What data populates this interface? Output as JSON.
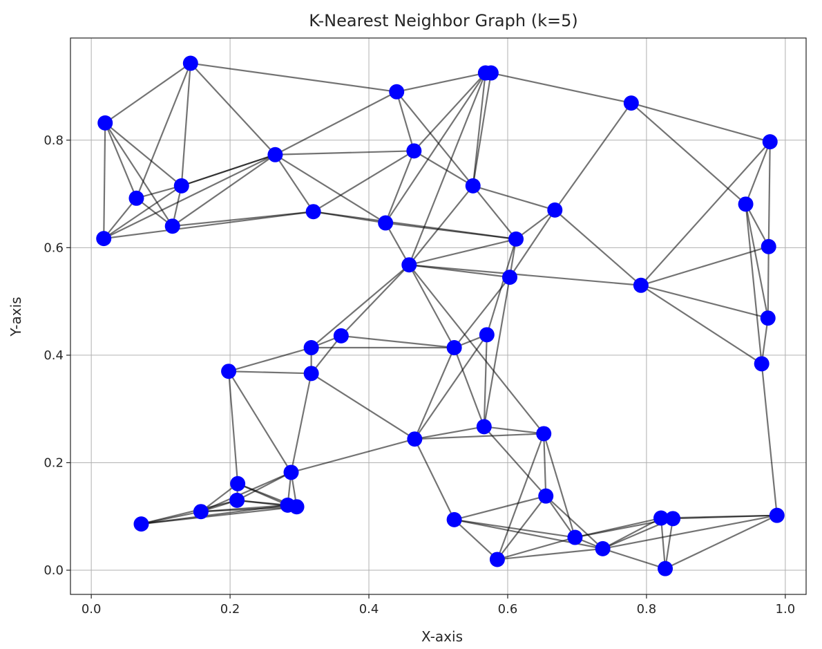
{
  "chart_data": {
    "type": "scatter",
    "title": "K-Nearest Neighbor Graph (k=5)",
    "xlabel": "X-axis",
    "ylabel": "Y-axis",
    "xlim": [
      -0.03,
      1.03
    ],
    "ylim": [
      -0.045,
      0.99
    ],
    "xticks": [
      0.0,
      0.2,
      0.4,
      0.6,
      0.8,
      1.0
    ],
    "yticks": [
      0.0,
      0.2,
      0.4,
      0.6,
      0.8
    ],
    "xtick_labels": [
      "0.0",
      "0.2",
      "0.4",
      "0.6",
      "0.8",
      "1.0"
    ],
    "ytick_labels": [
      "0.0",
      "0.2",
      "0.4",
      "0.6",
      "0.8"
    ],
    "grid": true,
    "point_color": "#0000ff",
    "edge_color": "#000000",
    "points": [
      [
        0.02,
        0.832
      ],
      [
        0.143,
        0.943
      ],
      [
        0.065,
        0.692
      ],
      [
        0.13,
        0.715
      ],
      [
        0.117,
        0.64
      ],
      [
        0.018,
        0.617
      ],
      [
        0.265,
        0.773
      ],
      [
        0.32,
        0.667
      ],
      [
        0.44,
        0.89
      ],
      [
        0.465,
        0.78
      ],
      [
        0.568,
        0.925
      ],
      [
        0.576,
        0.925
      ],
      [
        0.55,
        0.715
      ],
      [
        0.424,
        0.646
      ],
      [
        0.668,
        0.67
      ],
      [
        0.778,
        0.869
      ],
      [
        0.978,
        0.797
      ],
      [
        0.612,
        0.616
      ],
      [
        0.458,
        0.568
      ],
      [
        0.603,
        0.545
      ],
      [
        0.792,
        0.53
      ],
      [
        0.943,
        0.681
      ],
      [
        0.976,
        0.602
      ],
      [
        0.975,
        0.469
      ],
      [
        0.966,
        0.384
      ],
      [
        0.36,
        0.436
      ],
      [
        0.317,
        0.414
      ],
      [
        0.198,
        0.37
      ],
      [
        0.317,
        0.366
      ],
      [
        0.523,
        0.414
      ],
      [
        0.57,
        0.438
      ],
      [
        0.566,
        0.267
      ],
      [
        0.466,
        0.244
      ],
      [
        0.652,
        0.254
      ],
      [
        0.655,
        0.138
      ],
      [
        0.211,
        0.161
      ],
      [
        0.288,
        0.182
      ],
      [
        0.21,
        0.13
      ],
      [
        0.158,
        0.109
      ],
      [
        0.283,
        0.121
      ],
      [
        0.296,
        0.118
      ],
      [
        0.072,
        0.086
      ],
      [
        0.523,
        0.094
      ],
      [
        0.585,
        0.02
      ],
      [
        0.697,
        0.061
      ],
      [
        0.737,
        0.04
      ],
      [
        0.821,
        0.097
      ],
      [
        0.838,
        0.096
      ],
      [
        0.827,
        0.003
      ],
      [
        0.988,
        0.102
      ]
    ],
    "edges": [
      [
        0,
        2
      ],
      [
        0,
        3
      ],
      [
        0,
        4
      ],
      [
        0,
        5
      ],
      [
        1,
        0
      ],
      [
        1,
        3
      ],
      [
        1,
        6
      ],
      [
        1,
        2
      ],
      [
        1,
        8
      ],
      [
        2,
        3
      ],
      [
        2,
        4
      ],
      [
        2,
        5
      ],
      [
        3,
        4
      ],
      [
        3,
        5
      ],
      [
        3,
        6
      ],
      [
        4,
        6
      ],
      [
        4,
        7
      ],
      [
        5,
        6
      ],
      [
        5,
        7
      ],
      [
        6,
        7
      ],
      [
        6,
        8
      ],
      [
        6,
        9
      ],
      [
        6,
        3
      ],
      [
        7,
        9
      ],
      [
        7,
        13
      ],
      [
        6,
        13
      ],
      [
        7,
        17
      ],
      [
        8,
        9
      ],
      [
        8,
        12
      ],
      [
        8,
        10
      ],
      [
        9,
        12
      ],
      [
        9,
        13
      ],
      [
        9,
        10
      ],
      [
        10,
        11
      ],
      [
        10,
        12
      ],
      [
        10,
        13
      ],
      [
        10,
        18
      ],
      [
        11,
        12
      ],
      [
        11,
        15
      ],
      [
        12,
        14
      ],
      [
        12,
        17
      ],
      [
        13,
        18
      ],
      [
        13,
        17
      ],
      [
        12,
        18
      ],
      [
        14,
        17
      ],
      [
        14,
        20
      ],
      [
        14,
        19
      ],
      [
        15,
        16
      ],
      [
        15,
        21
      ],
      [
        15,
        14
      ],
      [
        16,
        21
      ],
      [
        16,
        22
      ],
      [
        16,
        20
      ],
      [
        21,
        22
      ],
      [
        21,
        23
      ],
      [
        21,
        24
      ],
      [
        22,
        23
      ],
      [
        22,
        20
      ],
      [
        23,
        20
      ],
      [
        24,
        20
      ],
      [
        24,
        23
      ],
      [
        17,
        18
      ],
      [
        17,
        19
      ],
      [
        18,
        19
      ],
      [
        18,
        20
      ],
      [
        18,
        29
      ],
      [
        17,
        30
      ],
      [
        18,
        25
      ],
      [
        18,
        26
      ],
      [
        19,
        31
      ],
      [
        19,
        29
      ],
      [
        18,
        33
      ],
      [
        25,
        26
      ],
      [
        25,
        28
      ],
      [
        25,
        29
      ],
      [
        26,
        27
      ],
      [
        26,
        28
      ],
      [
        26,
        29
      ],
      [
        27,
        28
      ],
      [
        27,
        35
      ],
      [
        27,
        36
      ],
      [
        28,
        36
      ],
      [
        28,
        32
      ],
      [
        29,
        30
      ],
      [
        29,
        31
      ],
      [
        29,
        32
      ],
      [
        30,
        31
      ],
      [
        30,
        32
      ],
      [
        31,
        32
      ],
      [
        31,
        33
      ],
      [
        31,
        34
      ],
      [
        32,
        42
      ],
      [
        32,
        33
      ],
      [
        33,
        34
      ],
      [
        33,
        43
      ],
      [
        33,
        44
      ],
      [
        34,
        42
      ],
      [
        34,
        43
      ],
      [
        34,
        44
      ],
      [
        34,
        45
      ],
      [
        35,
        37
      ],
      [
        35,
        38
      ],
      [
        35,
        39
      ],
      [
        35,
        40
      ],
      [
        36,
        37
      ],
      [
        36,
        38
      ],
      [
        36,
        39
      ],
      [
        36,
        40
      ],
      [
        36,
        32
      ],
      [
        37,
        38
      ],
      [
        37,
        39
      ],
      [
        37,
        40
      ],
      [
        37,
        41
      ],
      [
        38,
        39
      ],
      [
        38,
        40
      ],
      [
        38,
        41
      ],
      [
        39,
        41
      ],
      [
        40,
        41
      ],
      [
        42,
        43
      ],
      [
        42,
        44
      ],
      [
        43,
        44
      ],
      [
        43,
        45
      ],
      [
        44,
        45
      ],
      [
        44,
        46
      ],
      [
        44,
        47
      ],
      [
        45,
        46
      ],
      [
        45,
        47
      ],
      [
        45,
        48
      ],
      [
        46,
        47
      ],
      [
        46,
        48
      ],
      [
        47,
        48
      ],
      [
        46,
        49
      ],
      [
        47,
        49
      ],
      [
        48,
        49
      ],
      [
        45,
        49
      ],
      [
        42,
        45
      ],
      [
        24,
        49
      ]
    ]
  }
}
